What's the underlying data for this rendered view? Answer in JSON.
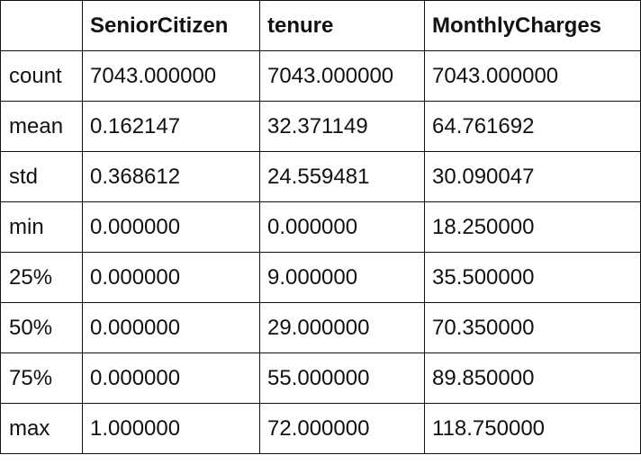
{
  "table": {
    "corner": "",
    "columns": [
      "SeniorCitizen",
      "tenure",
      "MonthlyCharges"
    ],
    "rows": [
      {
        "label": "count",
        "values": [
          "7043.000000",
          "7043.000000",
          "7043.000000"
        ]
      },
      {
        "label": "mean",
        "values": [
          "0.162147",
          "32.371149",
          "64.761692"
        ]
      },
      {
        "label": "std",
        "values": [
          "0.368612",
          "24.559481",
          "30.090047"
        ]
      },
      {
        "label": "min",
        "values": [
          "0.000000",
          "0.000000",
          "18.250000"
        ]
      },
      {
        "label": "25%",
        "values": [
          "0.000000",
          "9.000000",
          "35.500000"
        ]
      },
      {
        "label": "50%",
        "values": [
          "0.000000",
          "29.000000",
          "70.350000"
        ]
      },
      {
        "label": "75%",
        "values": [
          "0.000000",
          "55.000000",
          "89.850000"
        ]
      },
      {
        "label": "max",
        "values": [
          "1.000000",
          "72.000000",
          "118.750000"
        ]
      }
    ]
  }
}
